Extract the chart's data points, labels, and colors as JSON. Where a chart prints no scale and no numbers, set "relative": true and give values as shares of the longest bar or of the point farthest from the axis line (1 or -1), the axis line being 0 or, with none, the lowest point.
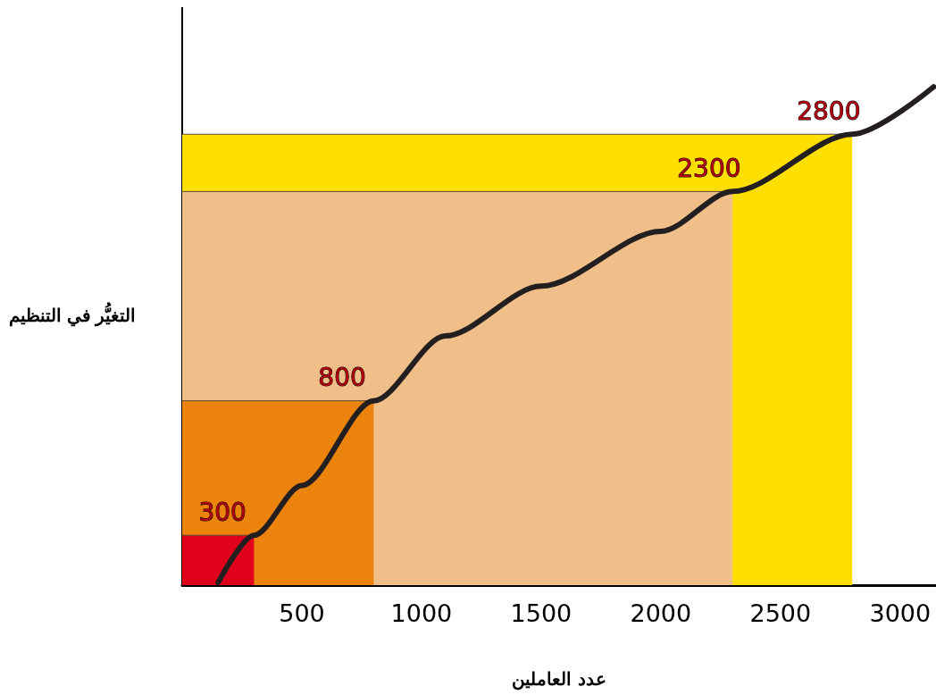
{
  "chart_data": {
    "type": "line",
    "relative": true,
    "xlabel": "عدد العاملين",
    "ylabel": "التغيُّر في التنظيم",
    "xlim": [
      0,
      3150
    ],
    "xticks": [
      500,
      1000,
      1500,
      2000,
      2500,
      3000
    ],
    "grid": false,
    "marker": "none",
    "line_style": "solid",
    "annotations": [
      {
        "text": "300",
        "x": 300,
        "y": 0.1
      },
      {
        "text": "800",
        "x": 800,
        "y": 0.37
      },
      {
        "text": "2300",
        "x": 2300,
        "y": 0.79
      },
      {
        "text": "2800",
        "x": 2800,
        "y": 0.905
      }
    ],
    "series": [
      {
        "type": "area",
        "color": "#ffdf00",
        "x": [
          0,
          2800
        ],
        "values": [
          0.905,
          0.905
        ]
      },
      {
        "type": "area",
        "color": "#f0be88",
        "x": [
          0,
          2300
        ],
        "values": [
          0.79,
          0.79
        ]
      },
      {
        "type": "area",
        "color": "#eb830c",
        "x": [
          0,
          800
        ],
        "values": [
          0.37,
          0.37
        ]
      },
      {
        "type": "area",
        "color": "#e0001b",
        "x": [
          0,
          300
        ],
        "values": [
          0.1,
          0.1
        ]
      },
      {
        "color": "#231f20",
        "x": [
          150,
          300,
          500,
          800,
          1100,
          1500,
          2000,
          2300,
          2800,
          3140
        ],
        "values": [
          0.005,
          0.1,
          0.2,
          0.37,
          0.5,
          0.6,
          0.71,
          0.79,
          0.905,
          1
        ]
      }
    ]
  }
}
